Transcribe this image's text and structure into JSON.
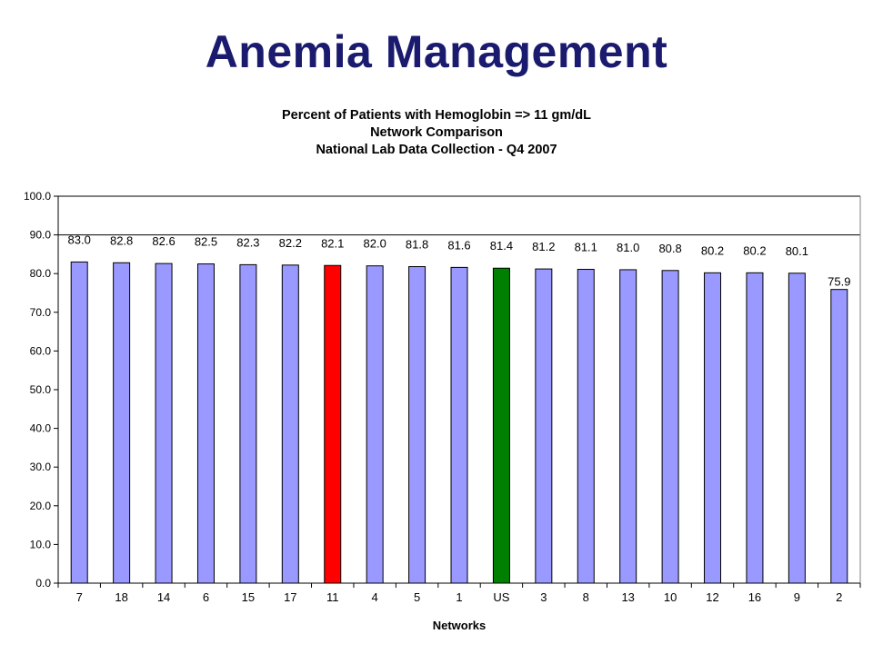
{
  "slide": {
    "title": "Anemia Management"
  },
  "colors": {
    "default_bar": "#9999ff",
    "highlight_bar": "#ff0000",
    "us_bar": "#008000",
    "title": "#1a1a6e"
  },
  "chart_data": {
    "type": "bar",
    "title_lines": [
      "Percent of Patients with Hemoglobin => 11 gm/dL",
      "Network Comparison",
      "National Lab Data Collection - Q4 2007"
    ],
    "xlabel": "Networks",
    "ylabel": "",
    "ylim": [
      0,
      100
    ],
    "y_ticks": [
      "0.0",
      "10.0",
      "20.0",
      "30.0",
      "40.0",
      "50.0",
      "60.0",
      "70.0",
      "80.0",
      "90.0",
      "100.0"
    ],
    "gridlines": [
      90,
      100
    ],
    "legend": "none",
    "categories": [
      "7",
      "18",
      "14",
      "6",
      "15",
      "17",
      "11",
      "4",
      "5",
      "1",
      "US",
      "3",
      "8",
      "13",
      "10",
      "12",
      "16",
      "9",
      "2"
    ],
    "values": [
      83.0,
      82.8,
      82.6,
      82.5,
      82.3,
      82.2,
      82.1,
      82.0,
      81.8,
      81.6,
      81.4,
      81.2,
      81.1,
      81.0,
      80.8,
      80.2,
      80.2,
      80.1,
      75.9
    ],
    "value_labels": [
      "83.0",
      "82.8",
      "82.6",
      "82.5",
      "82.3",
      "82.2",
      "82.1",
      "82.0",
      "81.8",
      "81.6",
      "81.4",
      "81.2",
      "81.1",
      "81.0",
      "80.8",
      "80.2",
      "80.2",
      "80.1",
      "75.9"
    ],
    "bar_colors": [
      "default",
      "default",
      "default",
      "default",
      "default",
      "default",
      "highlight",
      "default",
      "default",
      "default",
      "us",
      "default",
      "default",
      "default",
      "default",
      "default",
      "default",
      "default",
      "default"
    ]
  }
}
